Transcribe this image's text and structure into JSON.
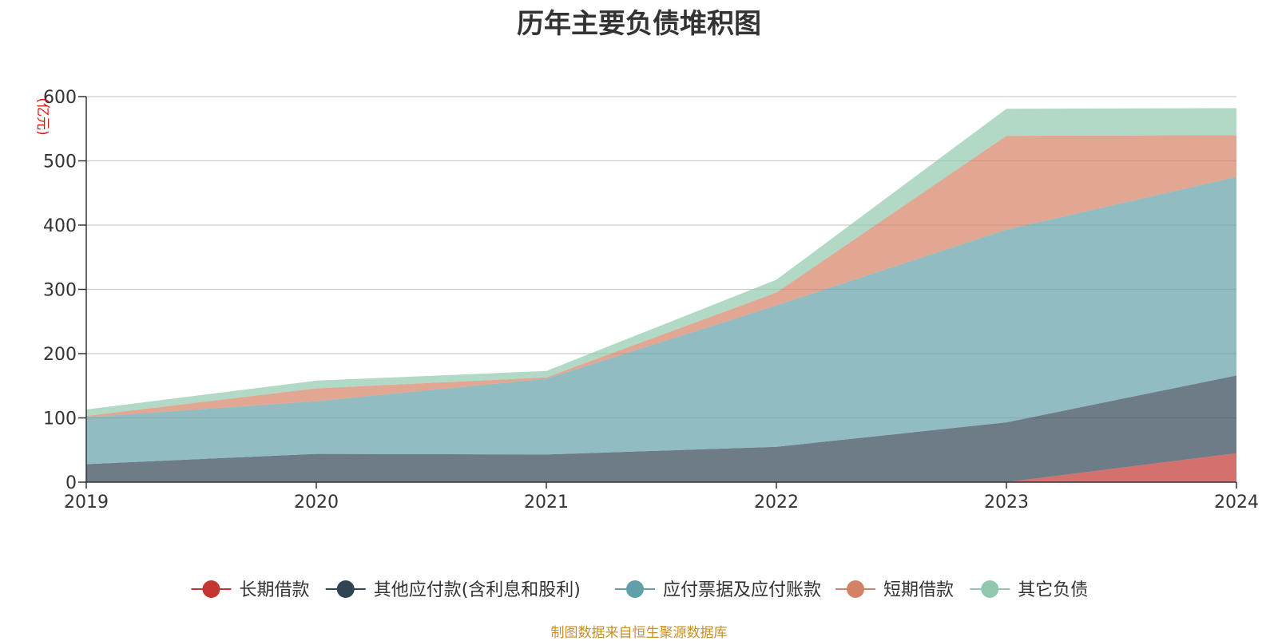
{
  "chart_data": {
    "type": "area",
    "stacked": true,
    "title": "历年主要负债堆积图",
    "unit_label": "(亿元)",
    "x": [
      "2019",
      "2020",
      "2021",
      "2022",
      "2023",
      "2024"
    ],
    "ylim": [
      0,
      600
    ],
    "yticks": [
      "0",
      "100",
      "200",
      "300",
      "400",
      "500",
      "600"
    ],
    "grid": true,
    "legend_position": "bottom",
    "series": [
      {
        "name": "长期借款",
        "color": "#c23531",
        "values": [
          0,
          0,
          0,
          0,
          0,
          45
        ]
      },
      {
        "name": "其他应付款(含利息和股利)",
        "color": "#2f4554",
        "values": [
          28,
          44,
          43,
          55,
          93,
          121
        ]
      },
      {
        "name": "应付票据及应付账款",
        "color": "#61a0a8",
        "values": [
          73,
          82,
          118,
          220,
          300,
          309
        ]
      },
      {
        "name": "短期借款",
        "color": "#d48265",
        "values": [
          2,
          20,
          2,
          20,
          146,
          65
        ]
      },
      {
        "name": "其它负债",
        "color": "#91c7ae",
        "values": [
          10,
          12,
          10,
          20,
          42,
          42
        ]
      }
    ]
  },
  "source_note": "制图数据来自恒生聚源数据库"
}
